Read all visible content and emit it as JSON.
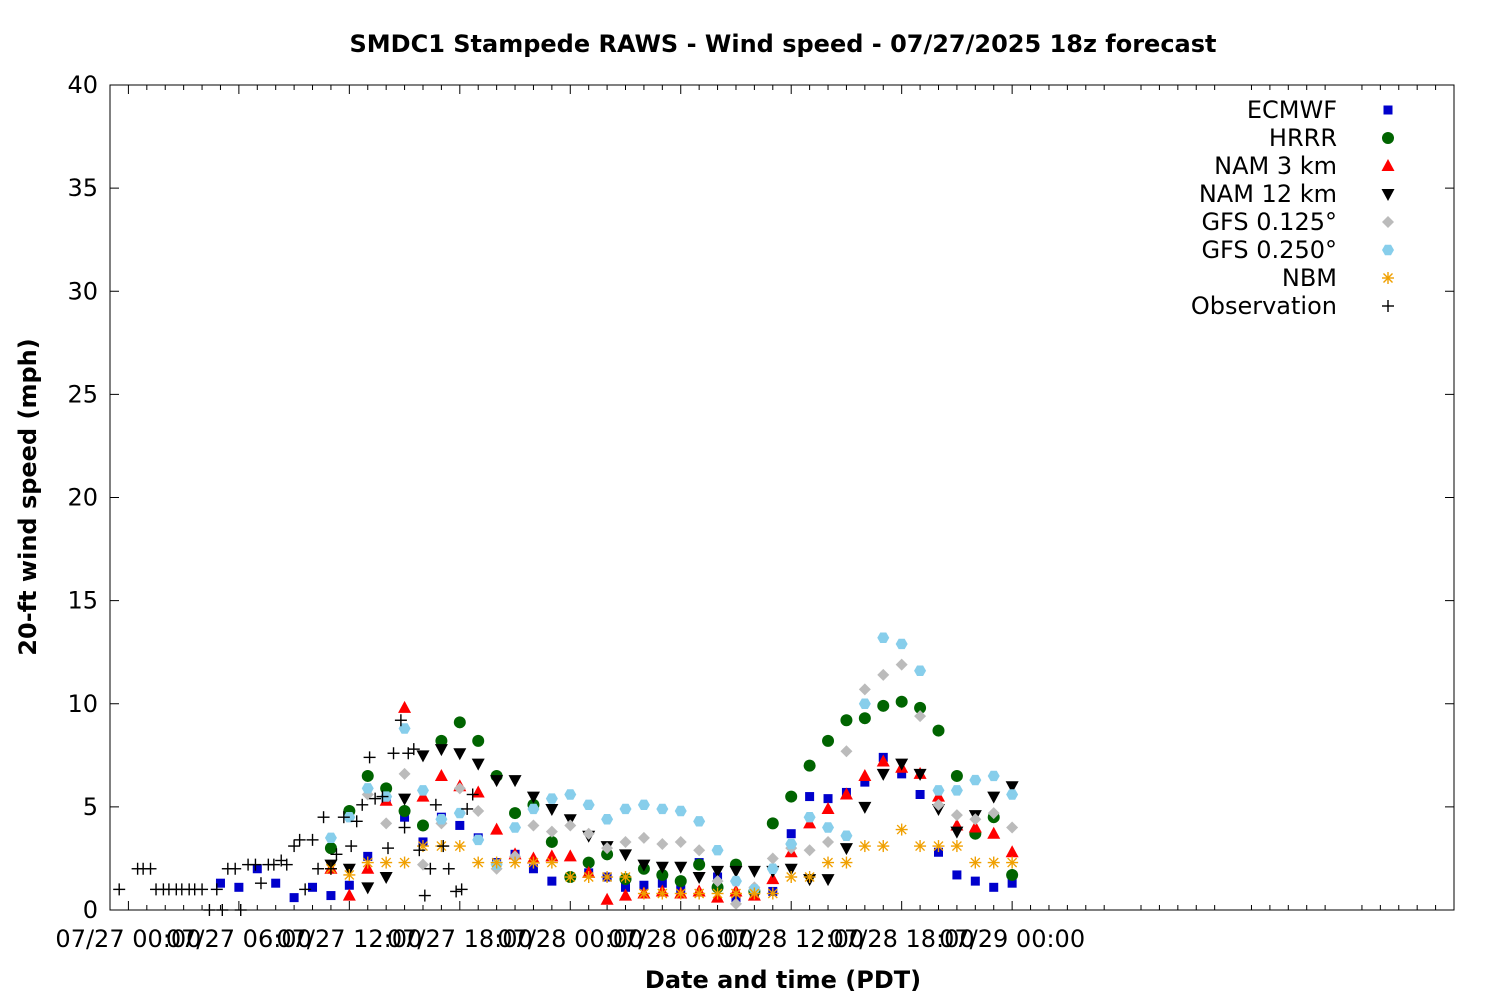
{
  "chart_data": {
    "type": "scatter",
    "title": "SMDC1 Stampede RAWS - Wind speed - 07/27/2025 18z forecast",
    "xlabel": "Date and time (PDT)",
    "ylabel": "20-ft wind speed (mph)",
    "x_unit": "hours after 07/27 00:00 PDT",
    "xlim": [
      -1,
      72
    ],
    "ylim": [
      0,
      40
    ],
    "x_ticks": [
      {
        "x": 0,
        "label": "07/27 00:00"
      },
      {
        "x": 6,
        "label": "07/27 06:00"
      },
      {
        "x": 12,
        "label": "07/27 12:00"
      },
      {
        "x": 18,
        "label": "07/27 18:00"
      },
      {
        "x": 24,
        "label": "07/28 00:00"
      },
      {
        "x": 30,
        "label": "07/28 06:00"
      },
      {
        "x": 36,
        "label": "07/28 12:00"
      },
      {
        "x": 42,
        "label": "07/28 18:00"
      },
      {
        "x": 48,
        "label": "07/29 00:00"
      }
    ],
    "y_ticks": [
      0,
      5,
      10,
      15,
      20,
      25,
      30,
      35,
      40
    ],
    "legend_position": "top-right",
    "grid": false,
    "series": [
      {
        "name": "ECMWF",
        "color": "#0000cc",
        "marker": "square",
        "x": [
          5,
          6,
          7,
          8,
          9,
          10,
          11,
          12,
          13,
          14,
          15,
          16,
          17,
          18,
          19,
          20,
          21,
          22,
          23,
          24,
          25,
          26,
          27,
          28,
          29,
          30,
          31,
          32,
          33,
          34,
          35,
          36,
          37,
          38,
          39,
          40,
          41,
          42,
          43,
          44,
          45,
          46,
          47,
          48
        ],
        "y": [
          1.3,
          1.1,
          2.0,
          1.3,
          0.6,
          1.1,
          0.7,
          1.2,
          2.6,
          5.3,
          4.5,
          3.3,
          4.5,
          4.1,
          3.5,
          2.3,
          2.7,
          2.0,
          1.4,
          1.6,
          1.8,
          1.6,
          1.1,
          1.2,
          1.3,
          1.0,
          2.3,
          1.6,
          0.6,
          0.7,
          0.9,
          3.7,
          5.5,
          5.4,
          5.7,
          6.2,
          7.4,
          6.6,
          5.6,
          2.8,
          1.7,
          1.4,
          1.1,
          1.3
        ]
      },
      {
        "name": "HRRR",
        "color": "#006400",
        "marker": "circle",
        "x": [
          11,
          12,
          13,
          14,
          15,
          16,
          17,
          18,
          19,
          20,
          21,
          22,
          23,
          24,
          25,
          26,
          27,
          28,
          29,
          30,
          31,
          32,
          33,
          34,
          35,
          36,
          37,
          38,
          39,
          40,
          41,
          42,
          43,
          44,
          45,
          46,
          47,
          48
        ],
        "y": [
          3.0,
          4.8,
          6.5,
          5.9,
          4.8,
          4.1,
          8.2,
          9.1,
          8.2,
          6.5,
          4.7,
          5.1,
          3.3,
          1.6,
          2.3,
          2.7,
          1.5,
          2.0,
          1.7,
          1.4,
          2.2,
          1.1,
          2.2,
          0.9,
          4.2,
          5.5,
          7.0,
          8.2,
          9.2,
          9.3,
          9.9,
          10.1,
          9.8,
          8.7,
          6.5,
          3.7,
          4.5,
          1.7
        ]
      },
      {
        "name": "NAM 3 km",
        "color": "#ff0000",
        "marker": "triangle-up",
        "x": [
          11,
          12,
          13,
          14,
          15,
          16,
          17,
          18,
          19,
          20,
          21,
          22,
          23,
          24,
          25,
          26,
          27,
          28,
          29,
          30,
          31,
          32,
          33,
          34,
          35,
          36,
          37,
          38,
          39,
          40,
          41,
          42,
          43,
          44,
          45,
          46,
          47,
          48
        ],
        "y": [
          2.0,
          0.7,
          2.0,
          5.3,
          9.8,
          5.5,
          6.5,
          6.0,
          5.7,
          3.9,
          2.7,
          2.5,
          2.6,
          2.6,
          1.8,
          0.5,
          0.7,
          0.8,
          0.9,
          0.8,
          0.9,
          0.6,
          0.9,
          0.7,
          1.5,
          2.8,
          4.2,
          4.9,
          5.6,
          6.5,
          7.2,
          6.9,
          6.6,
          5.5,
          4.1,
          4.0,
          3.7,
          2.8
        ]
      },
      {
        "name": "NAM 12 km",
        "color": "#000000",
        "marker": "triangle-down",
        "x": [
          11,
          12,
          13,
          14,
          15,
          16,
          17,
          18,
          19,
          20,
          21,
          22,
          23,
          24,
          25,
          26,
          27,
          28,
          29,
          30,
          31,
          32,
          33,
          34,
          35,
          36,
          37,
          38,
          39,
          40,
          41,
          42,
          43,
          44,
          45,
          46,
          47,
          48
        ],
        "y": [
          2.2,
          2.0,
          1.1,
          1.6,
          5.4,
          7.5,
          7.8,
          7.6,
          7.1,
          6.3,
          6.3,
          5.5,
          4.9,
          4.4,
          3.6,
          3.1,
          2.7,
          2.2,
          2.1,
          2.1,
          1.6,
          1.9,
          1.9,
          1.9,
          1.9,
          2.0,
          1.5,
          1.5,
          3.0,
          5.0,
          6.6,
          7.1,
          6.6,
          4.9,
          3.8,
          4.6,
          5.5,
          6.0
        ]
      },
      {
        "name": "GFS 0.125°",
        "color": "#bbbbbb",
        "marker": "diamond",
        "x": [
          13,
          14,
          15,
          16,
          17,
          18,
          19,
          20,
          21,
          22,
          23,
          24,
          25,
          26,
          27,
          28,
          29,
          30,
          31,
          32,
          33,
          34,
          35,
          36,
          37,
          38,
          39,
          40,
          41,
          42,
          43,
          44,
          45,
          46,
          47,
          48
        ],
        "y": [
          5.6,
          4.2,
          6.6,
          2.2,
          4.2,
          5.9,
          4.8,
          2.0,
          2.6,
          4.1,
          3.8,
          4.1,
          3.7,
          3.0,
          3.3,
          3.5,
          3.2,
          3.3,
          2.9,
          1.4,
          0.3,
          1.1,
          2.5,
          3.0,
          2.9,
          3.3,
          7.7,
          10.7,
          11.4,
          11.9,
          9.4,
          5.1,
          4.6,
          4.4,
          4.7,
          4.0
        ]
      },
      {
        "name": "GFS 0.250°",
        "color": "#87ceeb",
        "marker": "hexagon",
        "x": [
          11,
          12,
          13,
          14,
          15,
          16,
          17,
          18,
          19,
          20,
          21,
          22,
          23,
          24,
          25,
          26,
          27,
          28,
          29,
          30,
          31,
          32,
          33,
          34,
          35,
          36,
          37,
          38,
          39,
          40,
          41,
          42,
          43,
          44,
          45,
          46,
          47,
          48
        ],
        "y": [
          3.5,
          4.5,
          5.9,
          5.5,
          8.8,
          5.8,
          4.4,
          4.7,
          3.4,
          2.2,
          4.0,
          4.9,
          5.4,
          5.6,
          5.1,
          4.4,
          4.9,
          5.1,
          4.9,
          4.8,
          4.3,
          2.9,
          1.4,
          1.0,
          2.0,
          3.2,
          4.5,
          4.0,
          3.6,
          10.0,
          13.2,
          12.9,
          11.6,
          5.8,
          5.8,
          6.3,
          6.5,
          5.6
        ]
      },
      {
        "name": "NBM",
        "color": "#f0a000",
        "marker": "asterisk",
        "x": [
          11,
          12,
          13,
          14,
          15,
          16,
          17,
          18,
          19,
          20,
          21,
          22,
          23,
          24,
          25,
          26,
          27,
          28,
          29,
          30,
          31,
          32,
          33,
          34,
          35,
          36,
          37,
          38,
          39,
          40,
          41,
          42,
          43,
          44,
          45,
          46,
          47,
          48
        ],
        "y": [
          2.0,
          1.7,
          2.3,
          2.3,
          2.3,
          3.1,
          3.1,
          3.1,
          2.3,
          2.3,
          2.3,
          2.3,
          2.3,
          1.6,
          1.6,
          1.6,
          1.6,
          0.8,
          0.8,
          0.8,
          0.8,
          0.8,
          0.8,
          0.8,
          0.8,
          1.6,
          1.6,
          2.3,
          2.3,
          3.1,
          3.1,
          3.9,
          3.1,
          3.1,
          3.1,
          2.3,
          2.3,
          2.3
        ]
      },
      {
        "name": "Observation",
        "color": "#000000",
        "marker": "plus",
        "x": [
          -0.5,
          0.5,
          0.8,
          1.2,
          1.5,
          1.9,
          2.2,
          2.6,
          2.9,
          3.3,
          3.6,
          4.0,
          4.4,
          4.8,
          5.1,
          5.4,
          5.8,
          6.1,
          6.5,
          6.9,
          7.2,
          7.6,
          7.9,
          8.3,
          8.6,
          9.0,
          9.3,
          9.6,
          10.0,
          10.3,
          10.6,
          11.0,
          11.3,
          11.7,
          12.1,
          12.4,
          12.7,
          13.1,
          13.4,
          13.8,
          14.1,
          14.4,
          14.8,
          15.0,
          15.2,
          15.5,
          15.8,
          16.1,
          16.4,
          16.7,
          17.1,
          17.4,
          17.8,
          18.1,
          18.4,
          18.7
        ],
        "y": [
          1.0,
          2.0,
          2.0,
          2.0,
          1.0,
          1.0,
          1.0,
          1.0,
          1.0,
          1.0,
          1.0,
          1.0,
          0,
          1.0,
          0,
          2.0,
          2.0,
          0,
          2.2,
          2.2,
          1.3,
          2.2,
          2.2,
          2.4,
          2.2,
          3.1,
          3.4,
          1.0,
          3.4,
          2.0,
          4.5,
          2.0,
          2.7,
          4.5,
          3.1,
          4.3,
          5.1,
          7.4,
          5.4,
          5.5,
          3.0,
          7.6,
          9.2,
          4.0,
          7.6,
          7.8,
          2.9,
          0.7,
          2.0,
          5.1,
          3.1,
          2.0,
          0.9,
          1.0,
          4.9,
          5.6
        ]
      }
    ]
  }
}
